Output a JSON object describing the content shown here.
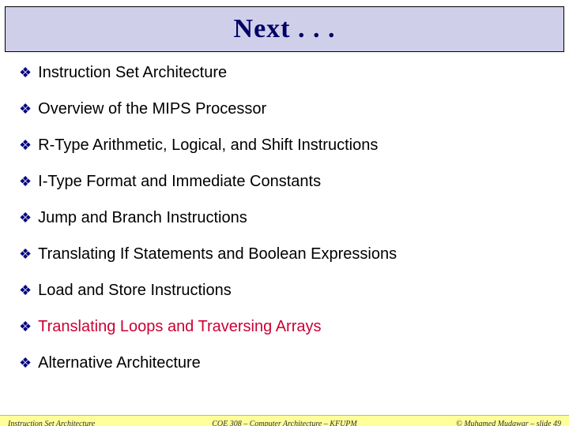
{
  "title": "Next . . .",
  "items": [
    {
      "text": "Instruction Set Architecture",
      "highlight": false
    },
    {
      "text": "Overview of the MIPS Processor",
      "highlight": false
    },
    {
      "text": "R-Type Arithmetic, Logical, and Shift Instructions",
      "highlight": false
    },
    {
      "text": "I-Type Format and Immediate Constants",
      "highlight": false
    },
    {
      "text": "Jump and Branch Instructions",
      "highlight": false
    },
    {
      "text": "Translating If Statements and Boolean Expressions",
      "highlight": false
    },
    {
      "text": "Load and Store Instructions",
      "highlight": false
    },
    {
      "text": "Translating Loops and Traversing Arrays",
      "highlight": true
    },
    {
      "text": "Alternative Architecture",
      "highlight": false
    }
  ],
  "bullet_glyph": "❖",
  "footer": {
    "left": "Instruction Set Architecture",
    "center": "COE 308 – Computer Architecture – KFUPM",
    "right": "© Muhamed Mudawar – slide 49"
  },
  "colors": {
    "title_bg": "#cfcfea",
    "title_border": "#000000",
    "title_text": "#000066",
    "bullet": "#000080",
    "item_text": "#000000",
    "highlight_text": "#cc0033",
    "footer_bg": "#ffff99",
    "footer_text": "#303030"
  }
}
